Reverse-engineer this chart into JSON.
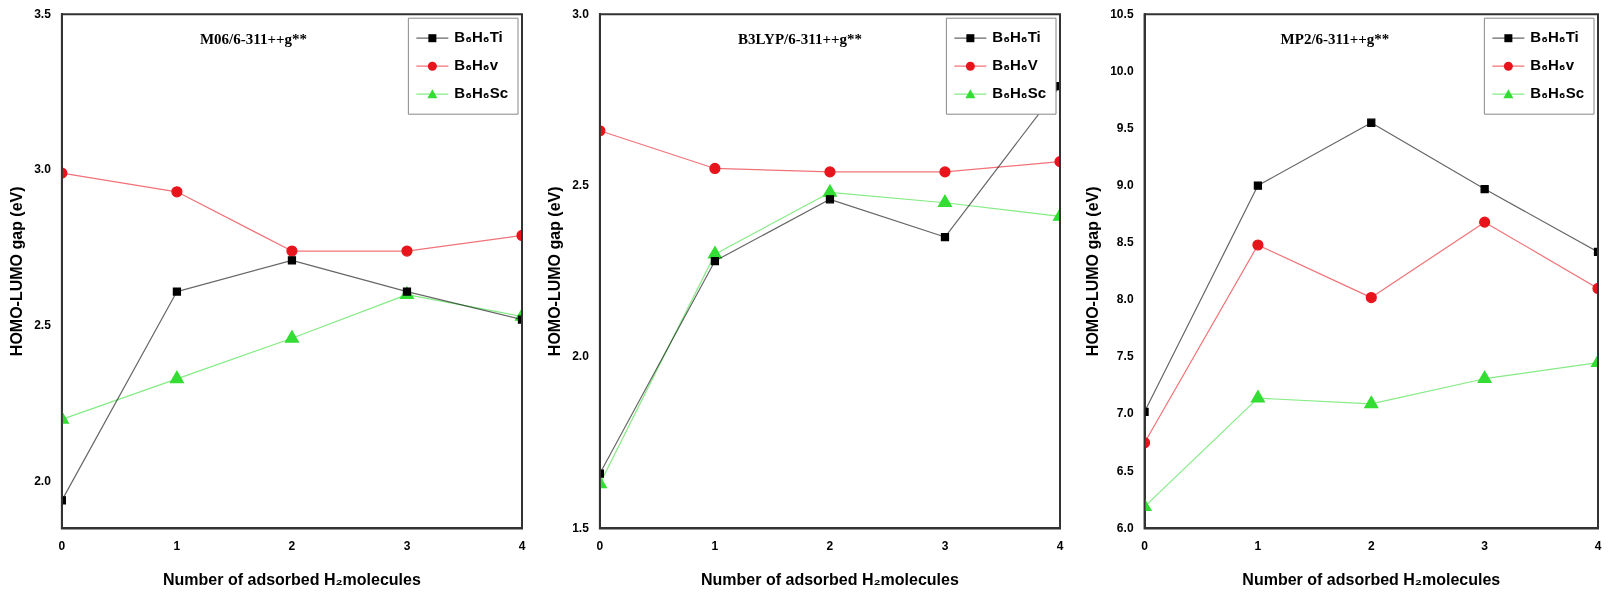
{
  "chart_data": [
    {
      "type": "line",
      "title": "M06/6-311++g**",
      "xlabel": "Number of adsorbed H₂molecules",
      "ylabel": "HOMO-LUMO gap (eV)",
      "x": [
        0,
        1,
        2,
        3,
        4
      ],
      "xlim": [
        0,
        4
      ],
      "xticks": [
        0,
        1,
        2,
        3,
        4
      ],
      "ylim": [
        1.85,
        3.5
      ],
      "yticks": [
        {
          "value": 2,
          "label": "2.0"
        },
        {
          "value": 2.5,
          "label": "2.5"
        },
        {
          "value": 3,
          "label": "3.0"
        },
        {
          "value": 3.5,
          "label": "3.5"
        }
      ],
      "grid": false,
      "legend": "top right",
      "line_style": "solid",
      "series": [
        {
          "name": "B₆H₆Ti",
          "color": "#000000",
          "marker": "square",
          "values": [
            1.94,
            2.61,
            2.71,
            2.61,
            2.52
          ]
        },
        {
          "name": "B₆H₆v",
          "color": "#e8141c",
          "marker": "circle",
          "values": [
            2.99,
            2.93,
            2.74,
            2.74,
            2.79
          ]
        },
        {
          "name": "B₆H₆Sc",
          "color": "#33dd33",
          "marker": "triangle",
          "values": [
            2.2,
            2.33,
            2.46,
            2.6,
            2.53
          ]
        }
      ]
    },
    {
      "type": "line",
      "title": "B3LYP/6-311++g**",
      "xlabel": "Number of adsorbed H₂molecules",
      "ylabel": "HOMO-LUMO gap (eV)",
      "x": [
        0,
        1,
        2,
        3,
        4
      ],
      "xlim": [
        0,
        4
      ],
      "xticks": [
        0,
        1,
        2,
        3,
        4
      ],
      "ylim": [
        1.5,
        3.0
      ],
      "yticks": [
        {
          "value": 1.5,
          "label": "1.5"
        },
        {
          "value": 2,
          "label": "2.0"
        },
        {
          "value": 2.5,
          "label": "2.5"
        },
        {
          "value": 3,
          "label": "3.0"
        }
      ],
      "grid": false,
      "legend": "top right",
      "line_style": "solid",
      "series": [
        {
          "name": "B₆H₆Ti",
          "color": "#000000",
          "marker": "square",
          "values": [
            1.66,
            2.28,
            2.46,
            2.35,
            2.79
          ]
        },
        {
          "name": "B₆H₆V",
          "color": "#e8141c",
          "marker": "circle",
          "values": [
            2.66,
            2.55,
            2.54,
            2.54,
            2.57
          ]
        },
        {
          "name": "B₆H₆Sc",
          "color": "#33dd33",
          "marker": "triangle",
          "values": [
            1.63,
            2.3,
            2.48,
            2.45,
            2.41
          ]
        }
      ]
    },
    {
      "type": "line",
      "title": "MP2/6-311++g**",
      "xlabel": "Number of adsorbed H₂molecules",
      "ylabel": "HOMO-LUMO gap (eV)",
      "x": [
        0,
        1,
        2,
        3,
        4
      ],
      "xlim": [
        0,
        4
      ],
      "xticks": [
        0,
        1,
        2,
        3,
        4
      ],
      "ylim": [
        6.0,
        10.5
      ],
      "yticks": [
        {
          "value": 6,
          "label": "6.0"
        },
        {
          "value": 6.5,
          "label": "6.5"
        },
        {
          "value": 7,
          "label": "7.0"
        },
        {
          "value": 7.5,
          "label": "7.5"
        },
        {
          "value": 8,
          "label": "8.0"
        },
        {
          "value": 8.5,
          "label": "8.5"
        },
        {
          "value": 9,
          "label": "9.0"
        },
        {
          "value": 9.5,
          "label": "9.5"
        },
        {
          "value": 10,
          "label": "10.0"
        },
        {
          "value": 10.5,
          "label": "10.5"
        }
      ],
      "grid": false,
      "legend": "top right",
      "line_style": "solid",
      "series": [
        {
          "name": "B₆H₆Ti",
          "color": "#000000",
          "marker": "square",
          "values": [
            7.02,
            9.0,
            9.55,
            8.97,
            8.42
          ]
        },
        {
          "name": "B₆H₆v",
          "color": "#e8141c",
          "marker": "circle",
          "values": [
            6.75,
            8.48,
            8.02,
            8.68,
            8.1
          ]
        },
        {
          "name": "B₆H₆Sc",
          "color": "#33dd33",
          "marker": "triangle",
          "values": [
            6.19,
            7.14,
            7.09,
            7.31,
            7.45
          ]
        }
      ]
    }
  ]
}
